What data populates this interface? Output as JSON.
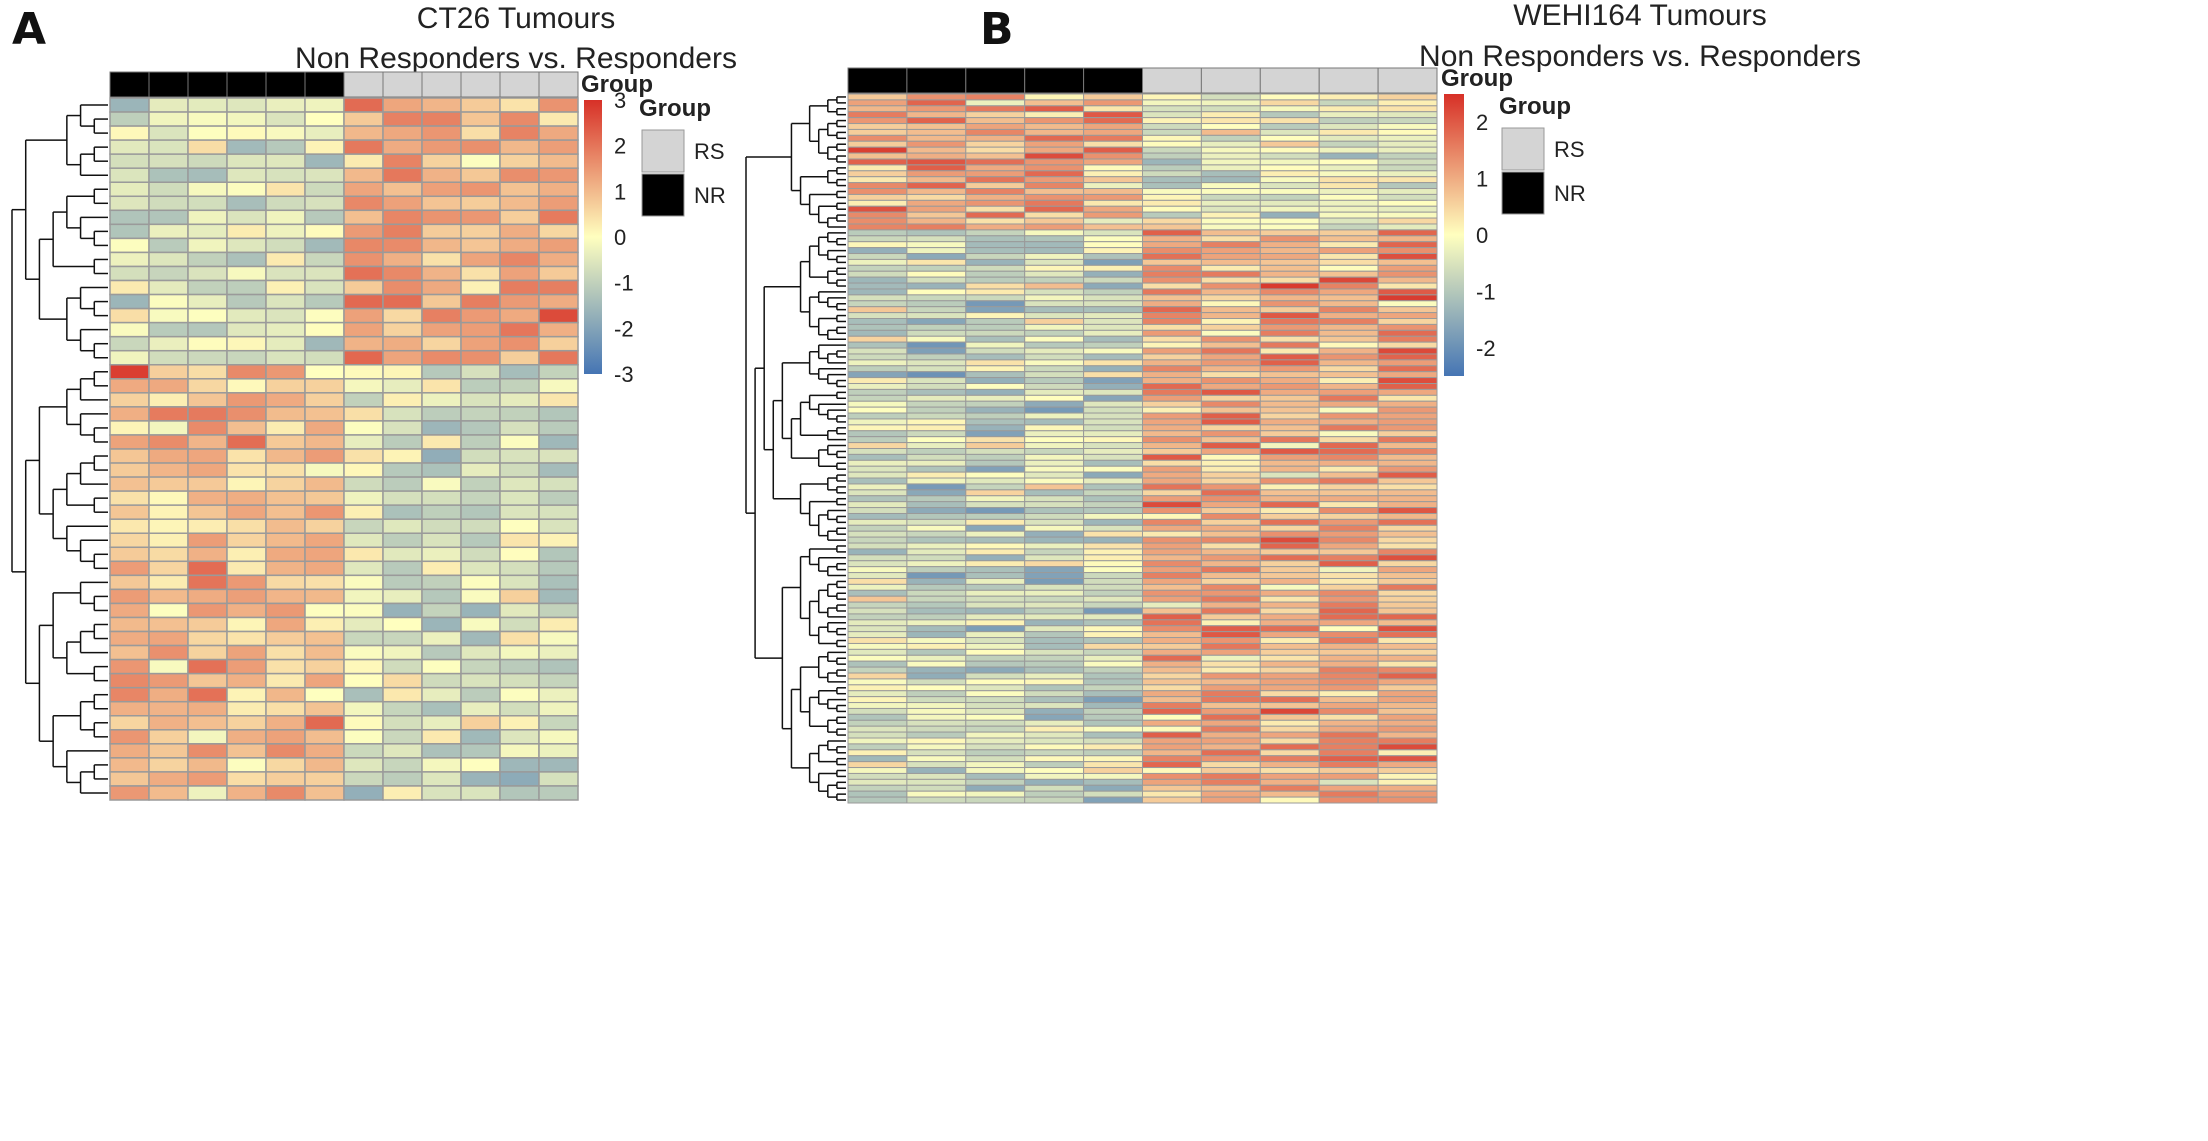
{
  "chart_data": [
    {
      "type": "heatmap",
      "panel_label": "A",
      "title": "CT26 Tumours",
      "subtitle": "Non Responders vs. Responders",
      "columns": 12,
      "rows": 50,
      "column_groups": [
        "NR",
        "NR",
        "NR",
        "NR",
        "NR",
        "NR",
        "RS",
        "RS",
        "RS",
        "RS",
        "RS",
        "RS"
      ],
      "color_scale": {
        "min": -3,
        "max": 3,
        "ticks": [
          "3",
          "2",
          "1",
          "0",
          "-1",
          "-2",
          "-3"
        ],
        "title": "Group"
      },
      "legend": {
        "title": "Group",
        "entries": [
          {
            "label": "RS",
            "color": "#d4d4d4"
          },
          {
            "label": "NR",
            "color": "#000000"
          }
        ]
      },
      "clusters": [
        {
          "rows": [
            0,
            18
          ],
          "group_means": [
            -0.6,
            1.2
          ]
        },
        {
          "rows": [
            19,
            49
          ],
          "group_means": [
            1.0,
            -0.6
          ]
        }
      ],
      "outliers": [
        {
          "row": 19,
          "col": 0,
          "value": 2.8
        }
      ]
    },
    {
      "type": "heatmap",
      "panel_label": "B",
      "title": "WEHI164 Tumours",
      "subtitle": "Non Responders vs. Responders",
      "columns": 10,
      "rows": 120,
      "column_groups": [
        "NR",
        "NR",
        "NR",
        "NR",
        "NR",
        "RS",
        "RS",
        "RS",
        "RS",
        "RS"
      ],
      "color_scale": {
        "min": -2.5,
        "max": 2.5,
        "ticks": [
          "2",
          "1",
          "0",
          "-1",
          "-2"
        ],
        "title": "Group"
      },
      "legend": {
        "title": "Group",
        "entries": [
          {
            "label": "RS",
            "color": "#d4d4d4"
          },
          {
            "label": "NR",
            "color": "#000000"
          }
        ]
      },
      "clusters": [
        {
          "rows": [
            0,
            22
          ],
          "group_means": [
            1.0,
            -0.4
          ]
        },
        {
          "rows": [
            23,
            119
          ],
          "group_means": [
            -0.6,
            1.0
          ]
        }
      ]
    }
  ],
  "colors": {
    "low": "#4575b4",
    "mid": "#ffffbf",
    "high": "#d73027",
    "cell_border": "#9a9a9a",
    "nr": "#000000",
    "rs": "#d4d4d4"
  }
}
